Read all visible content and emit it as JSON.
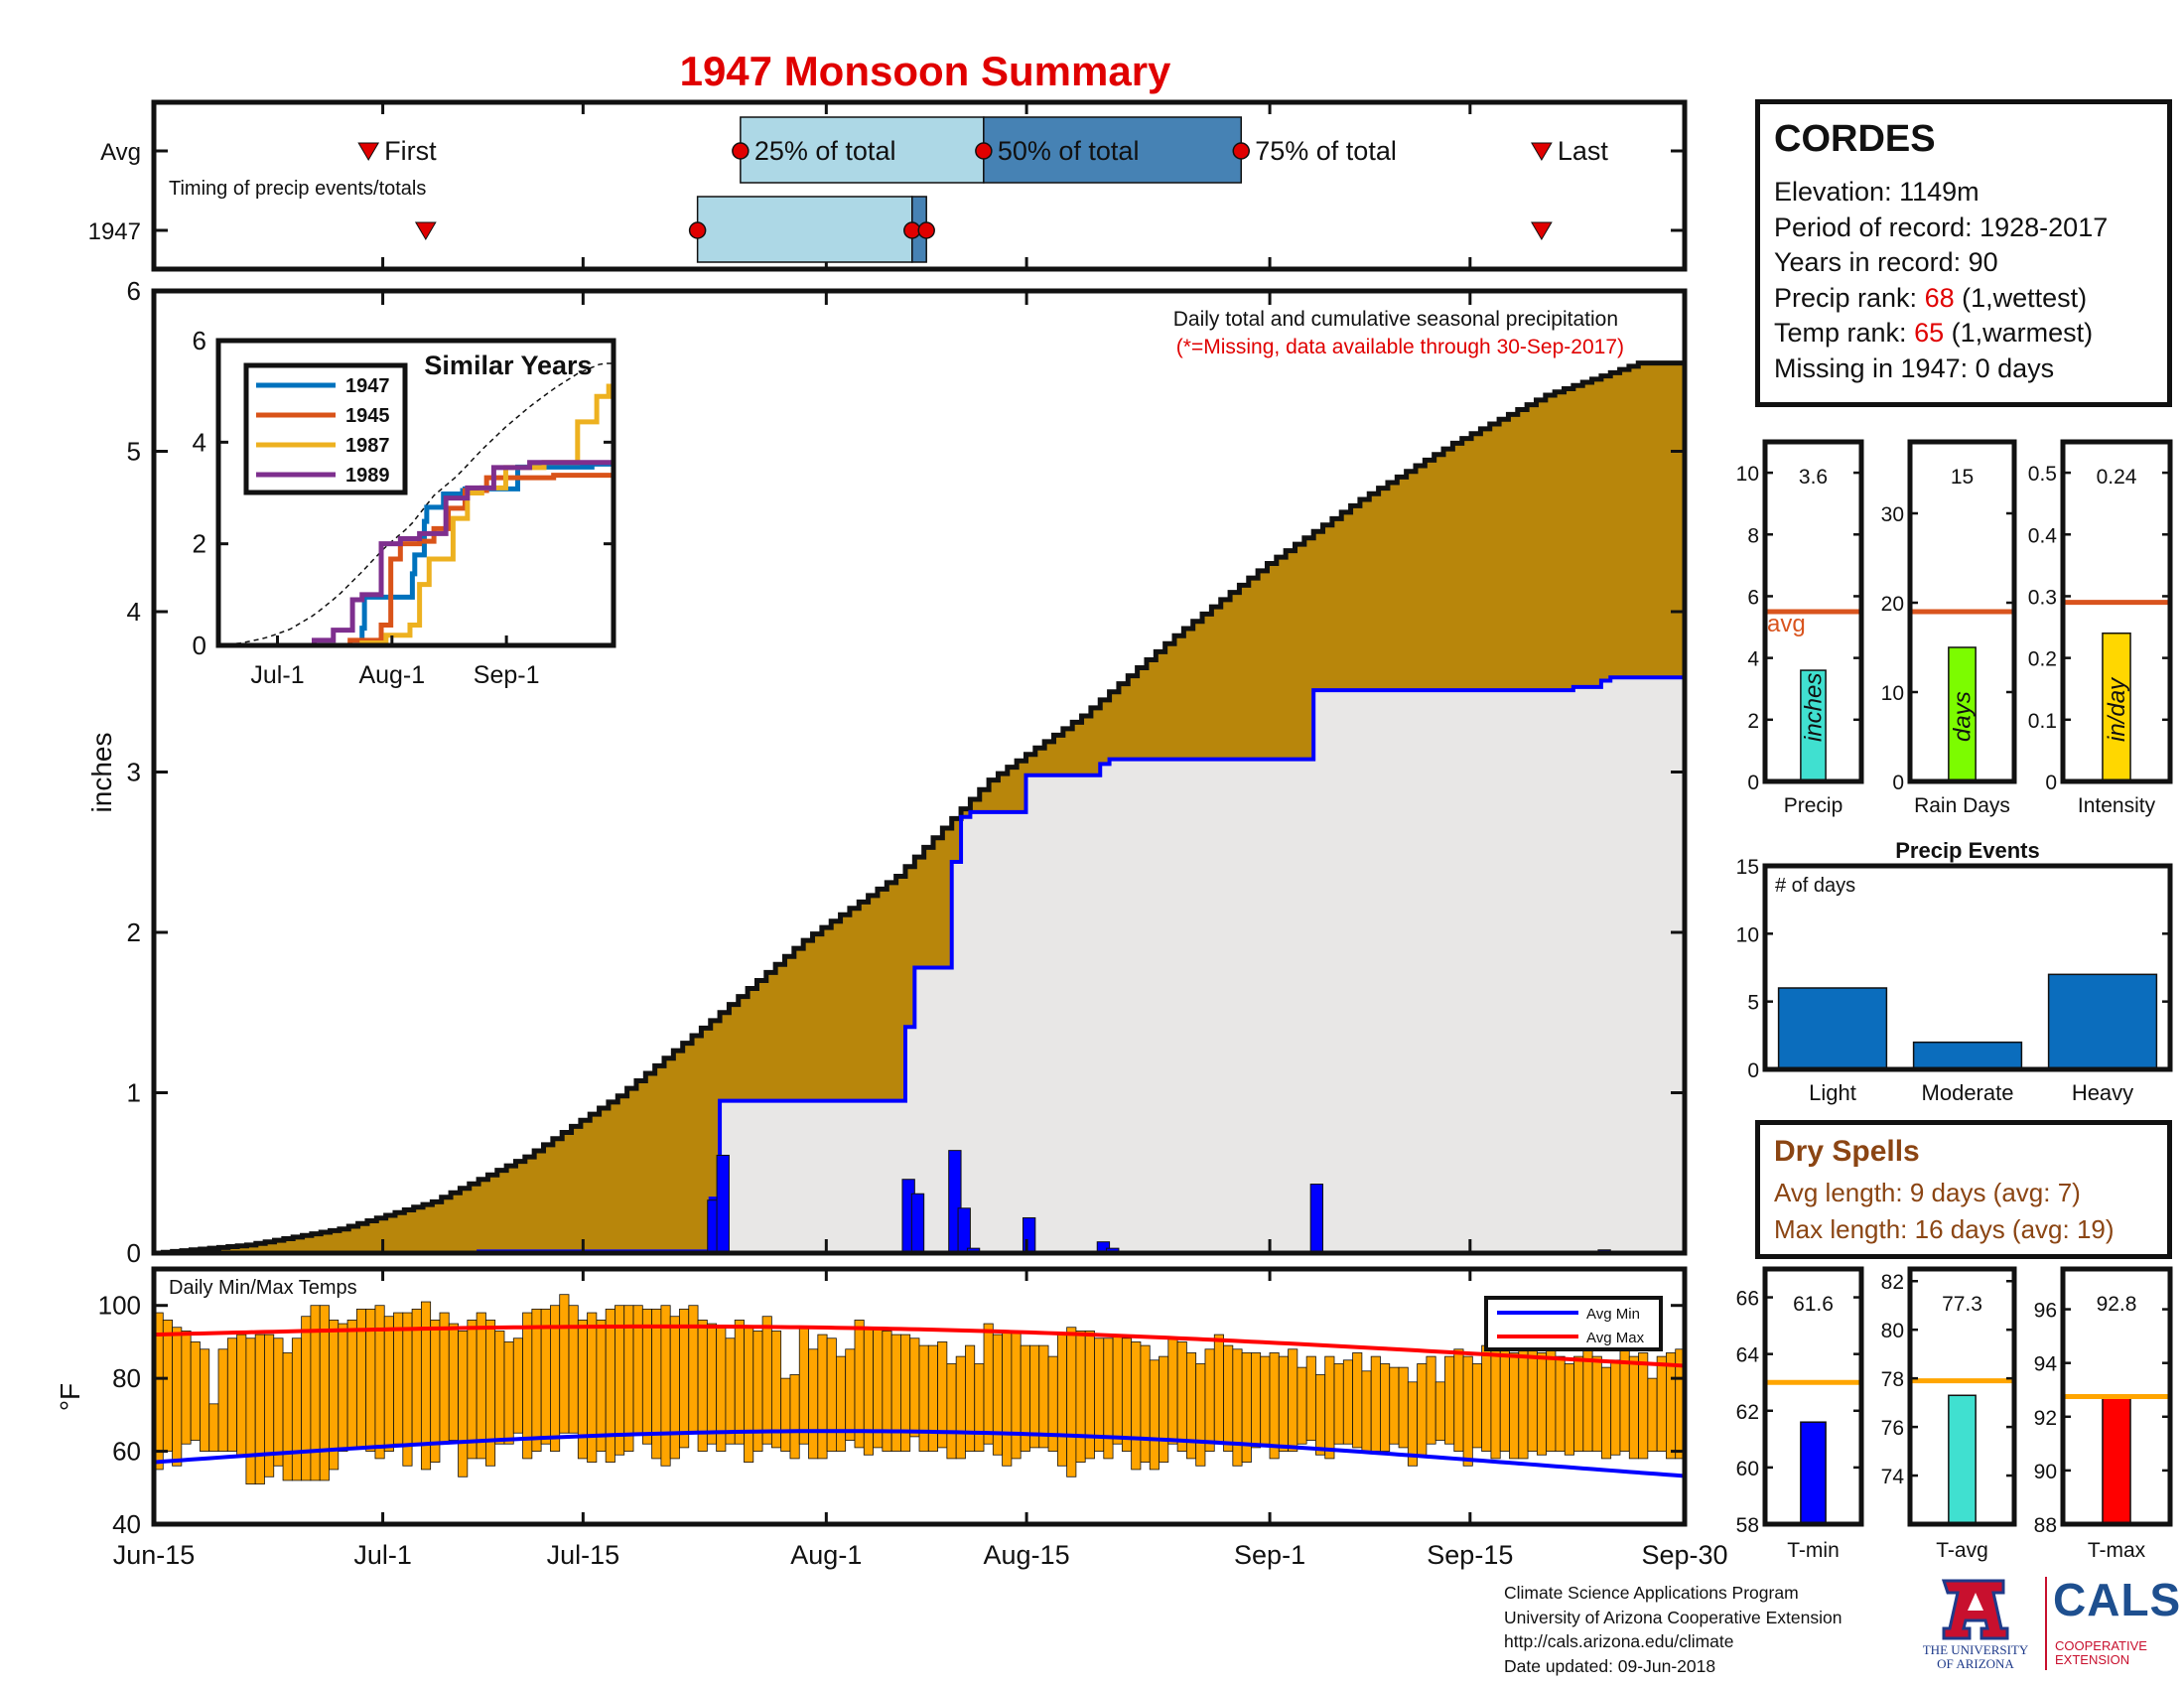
{
  "title": "1947 Monsoon Summary",
  "station": {
    "name": "CORDES",
    "elevation_label": "Elevation: ",
    "elevation": "1149m",
    "period_label": "Period of record: ",
    "period": "1928-2017",
    "years_label": "Years in record: ",
    "years": "90",
    "precip_rank_label": "Precip rank: ",
    "precip_rank": "68",
    "precip_rank_note": " (1,wettest)",
    "temp_rank_label": "Temp rank: ",
    "temp_rank": "65",
    "temp_rank_note": " (1,warmest)",
    "missing_label": "Missing in 1947: ",
    "missing": "0 days"
  },
  "dry_spells": {
    "heading": "Dry Spells",
    "avg_line": "Avg length: 9 days (avg: 7)",
    "max_line": "Max length: 16 days (avg: 19)"
  },
  "footer": {
    "line1": "Climate Science Applications Program",
    "line2": "University of Arizona Cooperative Extension",
    "line3": "http://cals.arizona.edu/climate",
    "line4": " Date updated: 09-Jun-2018"
  },
  "logos": {
    "ua_line1": "THE UNIVERSITY",
    "ua_line2": "OF ARIZONA",
    "cals": "CALS",
    "cals_sub1": "COOPERATIVE",
    "cals_sub2": "EXTENSION"
  },
  "colors": {
    "title_red": "#e00000",
    "cumulative_fill": "#b8860b",
    "above_avg_fill": "#228b22",
    "avg_fill": "#e8e7e6",
    "daily_bar": "#0000ff",
    "avg_line": "#0000ff",
    "temp_bar": "#ffa500",
    "avg_max": "#ff0000",
    "avg_min": "#0000ff",
    "ref_line": "#d9541e",
    "event_bar": "#0b6dbd"
  },
  "chart_data": [
    {
      "id": "timing",
      "type": "timeline",
      "subtitle": "Timing of precip events/totals",
      "rows": [
        "Avg",
        "1947"
      ],
      "x_ticks": [
        "Jun-15",
        "Jul-1",
        "Jul-15",
        "Aug-1",
        "Aug-15",
        "Sep-1",
        "Sep-15",
        "Sep-30"
      ],
      "avg": {
        "first": "Jun-30",
        "p25": "Jul-26",
        "p50": "Aug-12",
        "p75": "Aug-30",
        "last": "Sep-20",
        "first_label": "First",
        "p25_label": "25% of total",
        "p50_label": "50% of total",
        "p75_label": "75% of total",
        "last_label": "Last"
      },
      "year": {
        "first": "Jul-4",
        "p25": "Jul-23",
        "p50": "Aug-7",
        "p75": "Aug-8",
        "last": "Sep-20"
      }
    },
    {
      "id": "main",
      "type": "area",
      "title": "Daily total and cumulative seasonal precipitation",
      "subtitle": "(*=Missing, data available through 30-Sep-2017)",
      "ylabel": "inches",
      "ylim": [
        0,
        6
      ],
      "y_ticks": [
        0,
        1,
        2,
        3,
        4,
        5,
        6
      ],
      "x_ticks": [
        "Jun-15",
        "Jul-1",
        "Jul-15",
        "Aug-1",
        "Aug-15",
        "Sep-1",
        "Sep-15",
        "Sep-30"
      ],
      "avg_cumulative": [
        [
          0,
          0
        ],
        [
          10,
          0.05
        ],
        [
          20,
          0.15
        ],
        [
          30,
          0.32
        ],
        [
          40,
          0.6
        ],
        [
          50,
          0.98
        ],
        [
          60,
          1.45
        ],
        [
          70,
          1.95
        ],
        [
          80,
          2.35
        ],
        [
          90,
          2.95
        ],
        [
          100,
          3.35
        ],
        [
          110,
          3.85
        ],
        [
          120,
          4.3
        ],
        [
          130,
          4.7
        ],
        [
          140,
          5.05
        ],
        [
          150,
          5.35
        ],
        [
          160,
          5.55
        ]
      ],
      "year_cumulative": [
        [
          0,
          0
        ],
        [
          29,
          0.0
        ],
        [
          35,
          0.01
        ],
        [
          59,
          0.01
        ],
        [
          60,
          0.34
        ],
        [
          61,
          0.95
        ],
        [
          62,
          0.95
        ],
        [
          80,
          0.95
        ],
        [
          81,
          1.41
        ],
        [
          82,
          1.78
        ],
        [
          85,
          1.78
        ],
        [
          86,
          2.44
        ],
        [
          87,
          2.72
        ],
        [
          88,
          2.75
        ],
        [
          93,
          2.75
        ],
        [
          94,
          2.98
        ],
        [
          101,
          2.98
        ],
        [
          102,
          3.05
        ],
        [
          103,
          3.08
        ],
        [
          124,
          3.08
        ],
        [
          125,
          3.51
        ],
        [
          152,
          3.51
        ],
        [
          153,
          3.53
        ],
        [
          155,
          3.53
        ],
        [
          156,
          3.57
        ],
        [
          157,
          3.59
        ],
        [
          165,
          3.59
        ]
      ],
      "daily": [
        [
          60,
          0.33
        ],
        [
          61,
          0.61
        ],
        [
          81,
          0.46
        ],
        [
          82,
          0.37
        ],
        [
          86,
          0.64
        ],
        [
          87,
          0.28
        ],
        [
          88,
          0.03
        ],
        [
          94,
          0.22
        ],
        [
          102,
          0.07
        ],
        [
          103,
          0.03
        ],
        [
          125,
          0.43
        ],
        [
          156,
          0.02
        ]
      ],
      "inset": {
        "title": "Similar Years",
        "ylim": [
          0,
          6
        ],
        "y_ticks": [
          0,
          2,
          4,
          6
        ],
        "x_ticks": [
          "Jul-1",
          "Aug-1",
          "Sep-1"
        ],
        "series": [
          {
            "name": "1947",
            "color": "#0072bd",
            "values": [
              [
                0,
                0
              ],
              [
                60,
                0.34
              ],
              [
                61,
                0.95
              ],
              [
                81,
                1.41
              ],
              [
                82,
                1.78
              ],
              [
                86,
                2.44
              ],
              [
                87,
                2.72
              ],
              [
                94,
                2.98
              ],
              [
                102,
                3.05
              ],
              [
                103,
                3.08
              ],
              [
                125,
                3.51
              ],
              [
                156,
                3.57
              ],
              [
                165,
                3.59
              ]
            ]
          },
          {
            "name": "1945",
            "color": "#d95319",
            "values": [
              [
                0,
                0
              ],
              [
                55,
                0.1
              ],
              [
                68,
                0.4
              ],
              [
                72,
                1.7
              ],
              [
                76,
                2.0
              ],
              [
                84,
                2.05
              ],
              [
                90,
                2.3
              ],
              [
                96,
                2.7
              ],
              [
                103,
                3.05
              ],
              [
                112,
                3.3
              ],
              [
                140,
                3.35
              ],
              [
                165,
                3.35
              ]
            ]
          },
          {
            "name": "1987",
            "color": "#edb120",
            "values": [
              [
                0,
                0
              ],
              [
                60,
                0.05
              ],
              [
                70,
                0.2
              ],
              [
                80,
                0.4
              ],
              [
                84,
                1.2
              ],
              [
                88,
                1.7
              ],
              [
                98,
                2.5
              ],
              [
                104,
                3.0
              ],
              [
                110,
                3.1
              ],
              [
                120,
                3.5
              ],
              [
                136,
                3.6
              ],
              [
                150,
                4.4
              ],
              [
                158,
                4.9
              ],
              [
                163,
                5.1
              ],
              [
                165,
                5.2
              ]
            ]
          },
          {
            "name": "1989",
            "color": "#7e2f8e",
            "values": [
              [
                0,
                0
              ],
              [
                40,
                0.1
              ],
              [
                48,
                0.3
              ],
              [
                56,
                0.9
              ],
              [
                60,
                1.0
              ],
              [
                68,
                2.0
              ],
              [
                76,
                2.1
              ],
              [
                84,
                2.2
              ],
              [
                95,
                2.9
              ],
              [
                104,
                3.1
              ],
              [
                115,
                3.5
              ],
              [
                130,
                3.6
              ],
              [
                165,
                3.6
              ]
            ]
          }
        ]
      }
    },
    {
      "id": "temps",
      "type": "bar",
      "title": "Daily Min/Max Temps",
      "ylabel": "°F",
      "ylim": [
        40,
        110
      ],
      "y_ticks": [
        40,
        60,
        80,
        100
      ],
      "legend": [
        "Avg Min",
        "Avg Max"
      ],
      "avg_max_start": 92,
      "avg_max_end": 85,
      "avg_min_start": 57,
      "avg_min_end": 56,
      "tmax": [
        98,
        96,
        94,
        93,
        90,
        88,
        73,
        88,
        91,
        92,
        91,
        92,
        92,
        91,
        87,
        91,
        97,
        100,
        100,
        96,
        95,
        96,
        99,
        99,
        100,
        97,
        98,
        98,
        99,
        101,
        96,
        98,
        95,
        93,
        96,
        98,
        96,
        93,
        90,
        91,
        98,
        99,
        99,
        100,
        103,
        100,
        96,
        98,
        96,
        99,
        100,
        100,
        100,
        99,
        99,
        100,
        97,
        99,
        100,
        96,
        95,
        94,
        91,
        96,
        94,
        93,
        97,
        93,
        80,
        81,
        94,
        88,
        92,
        91,
        86,
        88,
        96,
        94,
        94,
        93,
        92,
        92,
        91,
        89,
        89,
        90,
        84,
        86,
        89,
        84,
        95,
        92,
        93,
        93,
        89,
        89,
        89,
        86,
        92,
        94,
        93,
        93,
        91,
        91,
        92,
        91,
        90,
        89,
        85,
        86,
        91,
        90,
        87,
        84,
        88,
        92,
        89,
        88,
        87,
        87,
        86,
        87,
        86,
        88,
        83,
        86,
        81,
        86,
        84,
        85,
        87,
        82,
        86,
        84,
        83,
        83,
        79,
        84,
        86,
        79,
        86,
        88,
        86,
        84,
        89,
        88,
        90,
        87,
        88,
        88,
        87,
        88,
        86,
        84,
        86,
        88,
        86,
        83,
        85,
        88,
        86,
        87,
        80,
        86,
        87,
        88
      ],
      "tmin": [
        55,
        60,
        56,
        62,
        63,
        60,
        60,
        60,
        60,
        59,
        51,
        51,
        53,
        56,
        52,
        52,
        52,
        52,
        52,
        55,
        60,
        61,
        61,
        60,
        58,
        60,
        62,
        56,
        62,
        55,
        57,
        62,
        63,
        53,
        58,
        58,
        56,
        62,
        62,
        65,
        58,
        60,
        62,
        60,
        65,
        65,
        58,
        57,
        60,
        57,
        59,
        60,
        65,
        62,
        58,
        56,
        58,
        61,
        65,
        60,
        62,
        60,
        62,
        62,
        57,
        60,
        62,
        61,
        60,
        58,
        62,
        58,
        58,
        60,
        60,
        63,
        61,
        59,
        61,
        60,
        60,
        60,
        64,
        60,
        60,
        61,
        58,
        58,
        60,
        60,
        62,
        59,
        56,
        58,
        60,
        61,
        61,
        60,
        56,
        53,
        57,
        58,
        60,
        58,
        62,
        60,
        55,
        57,
        55,
        57,
        62,
        60,
        58,
        56,
        60,
        62,
        60,
        56,
        57,
        61,
        62,
        58,
        60,
        60,
        62,
        63,
        59,
        58,
        62,
        62,
        61,
        60,
        60,
        60,
        62,
        61,
        56,
        59,
        62,
        63,
        62,
        60,
        56,
        61,
        60,
        58,
        60,
        58,
        58,
        60,
        59,
        60,
        60,
        59,
        60,
        60,
        60,
        58,
        59,
        60,
        58,
        58,
        60,
        60,
        58,
        58
      ]
    },
    {
      "id": "precip_stat",
      "type": "bar",
      "category": "Precip",
      "unit_label": "inches",
      "value": 3.6,
      "value_label": "3.6",
      "avg": 5.5,
      "avg_label": "avg",
      "ylim": [
        0,
        11
      ],
      "y_ticks": [
        0,
        2,
        4,
        6,
        8,
        10
      ],
      "color": "#40e0d0"
    },
    {
      "id": "raindays_stat",
      "type": "bar",
      "category": "Rain Days",
      "unit_label": "days",
      "value": 15,
      "value_label": "15",
      "avg": 19,
      "ylim": [
        0,
        38
      ],
      "y_ticks": [
        0,
        10,
        20,
        30
      ],
      "color": "#7cfc00"
    },
    {
      "id": "intensity_stat",
      "type": "bar",
      "category": "Intensity",
      "unit_label": "in/day",
      "value": 0.24,
      "value_label": "0.24",
      "avg": 0.29,
      "ylim": [
        0,
        0.55
      ],
      "y_ticks": [
        0,
        0.1,
        0.2,
        0.3,
        0.4,
        0.5
      ],
      "color": "#ffd700"
    },
    {
      "id": "events",
      "type": "bar",
      "title": "Precip Events",
      "ylabel": "# of days",
      "categories": [
        "Light",
        "Moderate",
        "Heavy"
      ],
      "values": [
        6,
        2,
        7
      ],
      "ylim": [
        0,
        15
      ],
      "y_ticks": [
        0,
        5,
        10,
        15
      ],
      "color": "#0b6dbd"
    },
    {
      "id": "tmin_stat",
      "type": "bar",
      "category": "T-min",
      "value": 61.6,
      "value_label": "61.6",
      "avg": 63.0,
      "ylim": [
        58,
        67
      ],
      "y_ticks": [
        58,
        60,
        62,
        64,
        66
      ],
      "color": "#0000ff"
    },
    {
      "id": "tavg_stat",
      "type": "bar",
      "category": "T-avg",
      "value": 77.3,
      "value_label": "77.3",
      "avg": 77.9,
      "ylim": [
        72,
        82.5
      ],
      "y_ticks": [
        74,
        76,
        78,
        80,
        82
      ],
      "color": "#40e0d0"
    },
    {
      "id": "tmax_stat",
      "type": "bar",
      "category": "T-max",
      "value": 92.8,
      "value_label": "92.8",
      "avg": 92.75,
      "ylim": [
        88,
        97.5
      ],
      "y_ticks": [
        88,
        90,
        92,
        94,
        96
      ],
      "color": "#ff0000"
    }
  ]
}
